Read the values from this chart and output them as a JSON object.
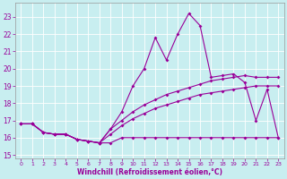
{
  "xlabel": "Windchill (Refroidissement éolien,°C)",
  "bg_color": "#c8eef0",
  "grid_color": "#b0d8dc",
  "line_color": "#990099",
  "xlim": [
    -0.5,
    23.5
  ],
  "ylim": [
    14.8,
    23.8
  ],
  "yticks": [
    15,
    16,
    17,
    18,
    19,
    20,
    21,
    22,
    23
  ],
  "xticks": [
    0,
    1,
    2,
    3,
    4,
    5,
    6,
    7,
    8,
    9,
    10,
    11,
    12,
    13,
    14,
    15,
    16,
    17,
    18,
    19,
    20,
    21,
    22,
    23
  ],
  "flat_y": [
    16.8,
    16.8,
    16.3,
    16.2,
    16.2,
    15.9,
    15.8,
    15.7,
    15.7,
    16.0,
    16.0,
    16.0,
    16.0,
    16.0,
    16.0,
    16.0,
    16.0,
    16.0,
    16.0,
    16.0,
    16.0,
    16.0,
    16.0,
    16.0
  ],
  "rise1_y": [
    16.8,
    16.8,
    16.3,
    16.2,
    16.2,
    15.9,
    15.8,
    15.7,
    16.2,
    16.7,
    17.1,
    17.4,
    17.7,
    17.9,
    18.1,
    18.3,
    18.5,
    18.6,
    18.7,
    18.8,
    18.9,
    19.0,
    19.0,
    19.0
  ],
  "rise2_y": [
    16.8,
    16.8,
    16.3,
    16.2,
    16.2,
    15.9,
    15.8,
    15.7,
    16.5,
    17.0,
    17.5,
    17.9,
    18.2,
    18.5,
    18.7,
    18.9,
    19.1,
    19.3,
    19.4,
    19.5,
    19.6,
    19.5,
    19.5,
    19.5
  ],
  "peak_y": [
    16.8,
    16.8,
    16.3,
    16.2,
    16.2,
    15.9,
    15.8,
    15.7,
    16.5,
    17.5,
    19.0,
    20.0,
    21.8,
    20.5,
    22.0,
    23.2,
    22.5,
    19.5,
    19.6,
    19.7,
    19.2,
    17.0,
    18.8,
    16.0
  ]
}
